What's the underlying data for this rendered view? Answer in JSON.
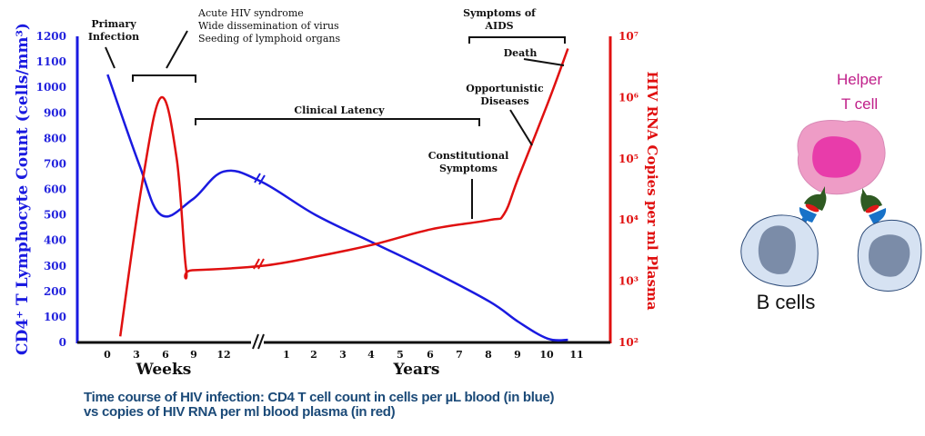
{
  "chart_data": {
    "type": "line",
    "title": "",
    "caption_lines": [
      "Time course of HIV infection: CD4 T cell count in cells per µL blood (in blue)",
      "vs copies of HIV RNA per ml blood plasma (in red)"
    ],
    "x_axis": {
      "segments": [
        {
          "label": "Weeks",
          "ticks": [
            "0",
            "3",
            "6",
            "9",
            "12"
          ]
        },
        {
          "label": "Years",
          "ticks": [
            "1",
            "2",
            "3",
            "4",
            "5",
            "6",
            "7",
            "8",
            "9",
            "10",
            "11"
          ]
        }
      ],
      "break_marker": "//"
    },
    "y_left": {
      "label": "CD4⁺ T Lymphocyte Count (cells/mm³)",
      "ticks": [
        "0",
        "100",
        "200",
        "300",
        "400",
        "500",
        "600",
        "700",
        "800",
        "900",
        "1000",
        "1100",
        "1200"
      ],
      "range": [
        0,
        1200
      ],
      "color": "#1a1ae0"
    },
    "y_right": {
      "label": "HIV RNA Copies per ml Plasma",
      "ticks": [
        "10²",
        "10³",
        "10⁴",
        "10⁵",
        "10⁶",
        "10⁷"
      ],
      "log_range": [
        2,
        7
      ],
      "scale": "log",
      "color": "#e01010"
    },
    "series": [
      {
        "name": "CD4 T cell count",
        "color": "#1a1ae0",
        "axis": "left",
        "points": [
          {
            "x": "0 wk",
            "xpos": 0.3,
            "y": 1050
          },
          {
            "x": "3 wk",
            "xpos": 1.3,
            "y": 700
          },
          {
            "x": "6 wk",
            "xpos": 2.0,
            "y": 500
          },
          {
            "x": "9 wk",
            "xpos": 3.0,
            "y": 560
          },
          {
            "x": "12 wk",
            "xpos": 4.0,
            "y": 670
          },
          {
            "x": "break",
            "xpos": 5.2,
            "y": 630
          },
          {
            "x": "2 yr",
            "xpos": 7.0,
            "y": 500
          },
          {
            "x": "4 yr",
            "xpos": 9.0,
            "y": 390
          },
          {
            "x": "6 yr",
            "xpos": 11.0,
            "y": 280
          },
          {
            "x": "8 yr",
            "xpos": 13.0,
            "y": 160
          },
          {
            "x": "9 yr",
            "xpos": 14.0,
            "y": 80
          },
          {
            "x": "10 yr",
            "xpos": 15.0,
            "y": 15
          },
          {
            "x": "10.7 yr",
            "xpos": 15.7,
            "y": 10
          }
        ]
      },
      {
        "name": "HIV RNA copies",
        "color": "#e01010",
        "axis": "right",
        "points": [
          {
            "x": "2 wk",
            "xpos": 0.7,
            "y_log": 2.1
          },
          {
            "x": "4 wk",
            "xpos": 1.4,
            "y_log": 4.6
          },
          {
            "x": "6 wk",
            "xpos": 2.0,
            "y_log": 6.0
          },
          {
            "x": "7 wk",
            "xpos": 2.5,
            "y_log": 5.0
          },
          {
            "x": "8 wk",
            "xpos": 2.8,
            "y_log": 3.2
          },
          {
            "x": "9 wk",
            "xpos": 3.0,
            "y_log": 3.18
          },
          {
            "x": "break",
            "xpos": 5.2,
            "y_log": 3.25
          },
          {
            "x": "2 yr",
            "xpos": 7.0,
            "y_log": 3.4
          },
          {
            "x": "4 yr",
            "xpos": 9.0,
            "y_log": 3.6
          },
          {
            "x": "6 yr",
            "xpos": 11.0,
            "y_log": 3.85
          },
          {
            "x": "8 yr",
            "xpos": 13.0,
            "y_log": 4.0
          },
          {
            "x": "8.5 yr",
            "xpos": 13.5,
            "y_log": 4.1
          },
          {
            "x": "9 yr",
            "xpos": 14.0,
            "y_log": 4.7
          },
          {
            "x": "10 yr",
            "xpos": 15.0,
            "y_log": 5.9
          },
          {
            "x": "10.7 yr",
            "xpos": 15.7,
            "y_log": 6.8
          }
        ]
      }
    ],
    "annotations": [
      {
        "id": "primary-infection",
        "lines": [
          "Primary",
          "Infection"
        ]
      },
      {
        "id": "acute-hiv",
        "lines": [
          "Acute HIV syndrome",
          "Wide dissemination of virus",
          "Seeding of lymphoid organs"
        ]
      },
      {
        "id": "clinical-latency",
        "lines": [
          "Clinical Latency"
        ]
      },
      {
        "id": "symptoms-of-aids",
        "lines": [
          "Symptoms of",
          "AIDS"
        ]
      },
      {
        "id": "death",
        "lines": [
          "Death"
        ]
      },
      {
        "id": "opportunistic-diseases",
        "lines": [
          "Opportunistic",
          "Diseases"
        ]
      },
      {
        "id": "constitutional-symptoms",
        "lines": [
          "Constitutional",
          "Symptoms"
        ]
      }
    ],
    "grid": false,
    "legend": "none"
  },
  "diagram": {
    "helper_t_cell_label": [
      "Helper",
      "T cell"
    ],
    "b_cells_label": "B cells",
    "colors": {
      "t_cell_body": "#ee9cc6",
      "t_cell_nucleus": "#e83caa",
      "b_cell_body": "#d6e2f2",
      "b_cell_nucleus": "#7b8ca8",
      "receptor_green": "#2f5a22",
      "receptor_blue": "#1872c8",
      "antigen_red": "#e01818",
      "t_label": "#c0208a"
    }
  }
}
